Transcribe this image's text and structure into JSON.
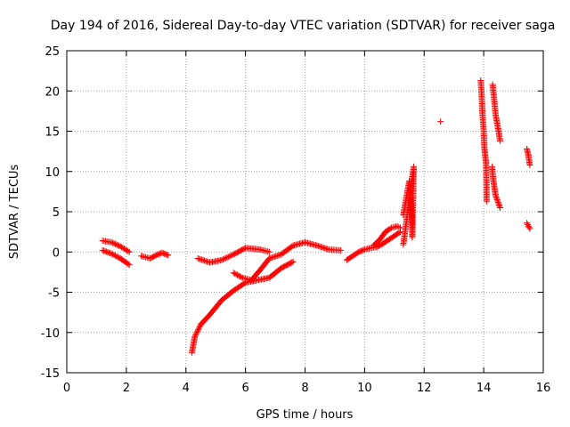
{
  "chart_data": {
    "type": "scatter",
    "title": "Day 194 of 2016, Sidereal Day-to-day VTEC variation (SDTVAR) for receiver saga",
    "xlabel": "GPS time / hours",
    "ylabel": "SDTVAR / TECUs",
    "xlim": [
      0,
      16
    ],
    "ylim": [
      -15,
      25
    ],
    "xticks": [
      "0",
      "2",
      "4",
      "6",
      "8",
      "10",
      "12",
      "14",
      "16"
    ],
    "yticks": [
      "-15",
      "-10",
      "-5",
      "0",
      "5",
      "10",
      "15",
      "20",
      "25"
    ],
    "grid": true,
    "marker": "+",
    "color": "#ff0000",
    "series": [
      {
        "name": "SDTVAR",
        "segments": [
          {
            "x": [
              1.2,
              1.5,
              1.8,
              2.1
            ],
            "y": [
              1.4,
              1.2,
              0.7,
              0.0
            ]
          },
          {
            "x": [
              1.2,
              1.5,
              1.8,
              2.1
            ],
            "y": [
              0.2,
              -0.2,
              -0.8,
              -1.6
            ]
          },
          {
            "x": [
              2.5,
              2.8,
              3.0,
              3.2,
              3.4
            ],
            "y": [
              -0.5,
              -0.8,
              -0.4,
              -0.1,
              -0.4
            ]
          },
          {
            "x": [
              4.2,
              4.3,
              4.5,
              4.8,
              5.2,
              5.6,
              6.0,
              6.4,
              6.8,
              7.2,
              7.6
            ],
            "y": [
              -12.5,
              -10.5,
              -9.0,
              -7.8,
              -6.0,
              -4.8,
              -3.8,
              -3.5,
              -3.2,
              -2.0,
              -1.2
            ]
          },
          {
            "x": [
              4.4,
              4.8,
              5.2,
              5.6,
              6.0,
              6.5,
              6.8
            ],
            "y": [
              -0.8,
              -1.3,
              -1.0,
              -0.3,
              0.5,
              0.3,
              0.0
            ]
          },
          {
            "x": [
              5.6,
              5.9,
              6.2,
              6.5,
              6.8,
              7.2,
              7.6,
              8.0,
              8.4,
              8.8,
              9.2
            ],
            "y": [
              -2.6,
              -3.2,
              -3.5,
              -2.2,
              -0.8,
              -0.3,
              0.8,
              1.2,
              0.8,
              0.3,
              0.2
            ]
          },
          {
            "x": [
              9.4,
              9.6,
              9.8,
              10.0,
              10.2,
              10.4,
              10.6,
              10.8,
              11.0,
              11.2
            ],
            "y": [
              -1.0,
              -0.5,
              0.0,
              0.3,
              0.5,
              0.6,
              1.0,
              1.5,
              2.0,
              2.5
            ]
          },
          {
            "x": [
              10.3,
              10.5,
              10.7,
              10.9,
              11.1,
              11.2
            ],
            "y": [
              0.8,
              1.5,
              2.5,
              3.0,
              3.2,
              3.0
            ]
          },
          {
            "x": [
              11.3,
              11.5,
              11.6,
              11.6,
              11.65,
              11.3
            ],
            "y": [
              4.6,
              8.8,
              3.8,
              1.8,
              10.6,
              0.9
            ]
          },
          {
            "x": [
              12.55
            ],
            "y": [
              16.2
            ]
          },
          {
            "x": [
              13.9,
              13.93,
              13.96,
              14.0,
              14.02,
              14.05,
              14.08,
              14.1
            ],
            "y": [
              21.3,
              19.5,
              17.0,
              15.0,
              13.0,
              12.0,
              11.0,
              6.3
            ]
          },
          {
            "x": [
              14.3,
              14.35,
              14.4,
              14.45,
              14.5,
              14.55
            ],
            "y": [
              20.8,
              19.0,
              17.0,
              16.0,
              15.0,
              13.8
            ]
          },
          {
            "x": [
              14.28,
              14.32,
              14.36,
              14.4,
              14.45,
              14.5,
              14.55
            ],
            "y": [
              10.6,
              9.0,
              8.0,
              7.0,
              6.5,
              6.0,
              5.5
            ]
          },
          {
            "x": [
              15.45,
              15.5,
              15.55
            ],
            "y": [
              12.8,
              12.0,
              10.8
            ]
          },
          {
            "x": [
              15.45,
              15.5,
              15.55
            ],
            "y": [
              3.6,
              3.2,
              2.9
            ]
          }
        ]
      }
    ]
  }
}
